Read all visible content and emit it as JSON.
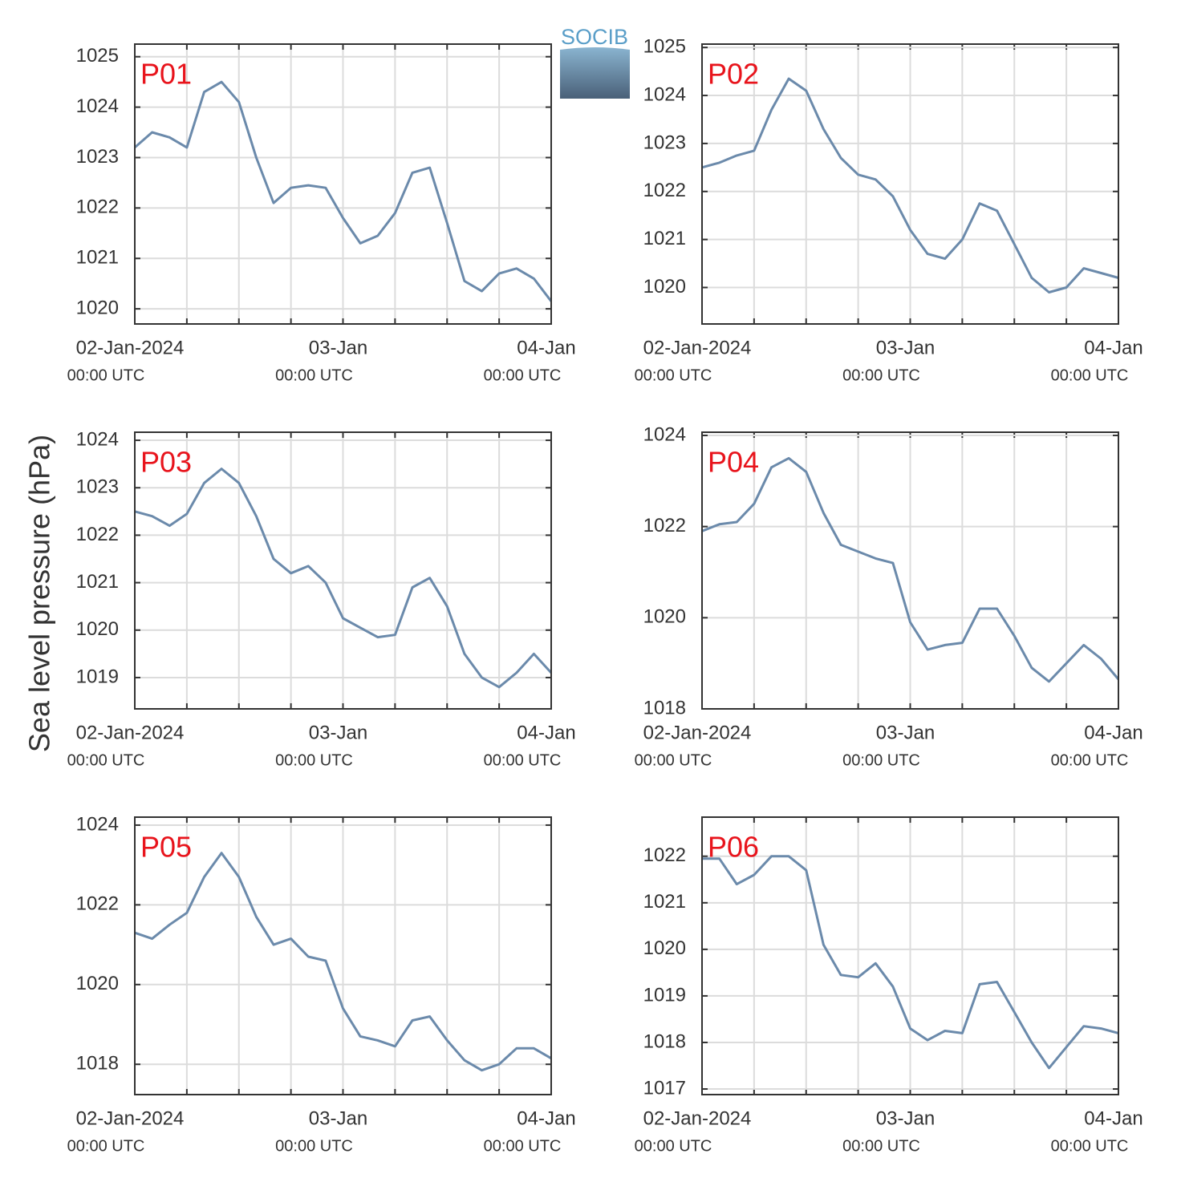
{
  "ylabel": "Sea level pressure (hPa)",
  "logo": "SOCIB",
  "chart_data": [
    {
      "type": "line",
      "title": "P01",
      "color": "#6b8aab",
      "grid": true,
      "x": [
        0,
        2,
        4,
        6,
        8,
        10,
        12,
        14,
        16,
        18,
        20,
        22,
        24,
        26,
        28,
        30,
        32,
        34,
        36,
        38,
        40,
        42,
        44,
        46,
        48
      ],
      "values": [
        1023.2,
        1023.5,
        1023.4,
        1023.2,
        1024.3,
        1024.5,
        1024.1,
        1023.0,
        1022.1,
        1022.4,
        1022.45,
        1022.4,
        1021.8,
        1021.3,
        1021.45,
        1021.9,
        1022.7,
        1022.8,
        1021.7,
        1020.55,
        1020.35,
        1020.7,
        1020.8,
        1020.6,
        1020.15
      ],
      "xlim": [
        0,
        48
      ],
      "ylim": [
        1019.7,
        1025.25
      ],
      "yticks": [
        1020,
        1021,
        1022,
        1023,
        1024,
        1025
      ],
      "xticks": [
        {
          "value": 0,
          "label": "02-Jan-2024",
          "sublabel": "00:00 UTC"
        },
        {
          "value": 24,
          "label": "03-Jan",
          "sublabel": "00:00 UTC"
        },
        {
          "value": 48,
          "label": "04-Jan",
          "sublabel": "00:00 UTC"
        }
      ],
      "xminorticks": [
        6,
        12,
        18,
        30,
        36,
        42
      ]
    },
    {
      "type": "line",
      "title": "P02",
      "color": "#6b8aab",
      "grid": true,
      "x": [
        0,
        2,
        4,
        6,
        8,
        10,
        12,
        14,
        16,
        18,
        20,
        22,
        24,
        26,
        28,
        30,
        32,
        34,
        36,
        38,
        40,
        42,
        44,
        46,
        48
      ],
      "values": [
        1022.5,
        1022.6,
        1022.75,
        1022.85,
        1023.7,
        1024.35,
        1024.1,
        1023.3,
        1022.7,
        1022.35,
        1022.25,
        1021.9,
        1021.2,
        1020.7,
        1020.6,
        1021.0,
        1021.75,
        1021.6,
        1020.9,
        1020.2,
        1019.9,
        1020.0,
        1020.4,
        1020.3,
        1020.2
      ],
      "xlim": [
        0,
        48
      ],
      "ylim": [
        1019.24,
        1025.07
      ],
      "yticks": [
        1020,
        1021,
        1022,
        1023,
        1024,
        1025
      ],
      "xticks": [
        {
          "value": 0,
          "label": "02-Jan-2024",
          "sublabel": "00:00 UTC"
        },
        {
          "value": 24,
          "label": "03-Jan",
          "sublabel": "00:00 UTC"
        },
        {
          "value": 48,
          "label": "04-Jan",
          "sublabel": "00:00 UTC"
        }
      ],
      "xminorticks": [
        6,
        12,
        18,
        30,
        36,
        42
      ]
    },
    {
      "type": "line",
      "title": "P03",
      "color": "#6b8aab",
      "grid": true,
      "x": [
        0,
        2,
        4,
        6,
        8,
        10,
        12,
        14,
        16,
        18,
        20,
        22,
        24,
        26,
        28,
        30,
        32,
        34,
        36,
        38,
        40,
        42,
        44,
        46,
        48
      ],
      "values": [
        1022.5,
        1022.4,
        1022.2,
        1022.45,
        1023.1,
        1023.4,
        1023.1,
        1022.4,
        1021.5,
        1021.2,
        1021.35,
        1021.0,
        1020.25,
        1020.05,
        1019.85,
        1019.9,
        1020.9,
        1021.1,
        1020.5,
        1019.5,
        1019.0,
        1018.8,
        1019.1,
        1019.5,
        1019.1
      ],
      "xlim": [
        0,
        48
      ],
      "ylim": [
        1018.34,
        1024.17
      ],
      "yticks": [
        1019,
        1020,
        1021,
        1022,
        1023,
        1024
      ],
      "xticks": [
        {
          "value": 0,
          "label": "02-Jan-2024",
          "sublabel": "00:00 UTC"
        },
        {
          "value": 24,
          "label": "03-Jan",
          "sublabel": "00:00 UTC"
        },
        {
          "value": 48,
          "label": "04-Jan",
          "sublabel": "00:00 UTC"
        }
      ],
      "xminorticks": [
        6,
        12,
        18,
        30,
        36,
        42
      ]
    },
    {
      "type": "line",
      "title": "P04",
      "color": "#6b8aab",
      "grid": true,
      "x": [
        0,
        2,
        4,
        6,
        8,
        10,
        12,
        14,
        16,
        18,
        20,
        22,
        24,
        26,
        28,
        30,
        32,
        34,
        36,
        38,
        40,
        42,
        44,
        46,
        48
      ],
      "values": [
        1021.9,
        1022.05,
        1022.1,
        1022.5,
        1023.3,
        1023.5,
        1023.2,
        1022.3,
        1021.6,
        1021.45,
        1021.3,
        1021.2,
        1019.9,
        1019.3,
        1019.4,
        1019.45,
        1020.2,
        1020.2,
        1019.6,
        1018.9,
        1018.6,
        1019.0,
        1019.4,
        1019.1,
        1018.65
      ],
      "xlim": [
        0,
        48
      ],
      "ylim": [
        1018,
        1024.07
      ],
      "yticks": [
        1018,
        1020,
        1022,
        1024
      ],
      "xticks": [
        {
          "value": 0,
          "label": "02-Jan-2024",
          "sublabel": "00:00 UTC"
        },
        {
          "value": 24,
          "label": "03-Jan",
          "sublabel": "00:00 UTC"
        },
        {
          "value": 48,
          "label": "04-Jan",
          "sublabel": "00:00 UTC"
        }
      ],
      "xminorticks": [
        6,
        12,
        18,
        30,
        36,
        42
      ]
    },
    {
      "type": "line",
      "title": "P05",
      "color": "#6b8aab",
      "grid": true,
      "x": [
        0,
        2,
        4,
        6,
        8,
        10,
        12,
        14,
        16,
        18,
        20,
        22,
        24,
        26,
        28,
        30,
        32,
        34,
        36,
        38,
        40,
        42,
        44,
        46,
        48
      ],
      "values": [
        1021.3,
        1021.15,
        1021.5,
        1021.8,
        1022.7,
        1023.3,
        1022.7,
        1021.7,
        1021.0,
        1021.15,
        1020.7,
        1020.6,
        1019.4,
        1018.7,
        1018.6,
        1018.45,
        1019.1,
        1019.2,
        1018.6,
        1018.1,
        1017.85,
        1018.0,
        1018.4,
        1018.4,
        1018.15
      ],
      "xlim": [
        0,
        48
      ],
      "ylim": [
        1017.24,
        1024.2
      ],
      "yticks": [
        1018,
        1020,
        1022,
        1024
      ],
      "xticks": [
        {
          "value": 0,
          "label": "02-Jan-2024",
          "sublabel": "00:00 UTC"
        },
        {
          "value": 24,
          "label": "03-Jan",
          "sublabel": "00:00 UTC"
        },
        {
          "value": 48,
          "label": "04-Jan",
          "sublabel": "00:00 UTC"
        }
      ],
      "xminorticks": [
        6,
        12,
        18,
        30,
        36,
        42
      ]
    },
    {
      "type": "line",
      "title": "P06",
      "color": "#6b8aab",
      "grid": true,
      "x": [
        0,
        2,
        4,
        6,
        8,
        10,
        12,
        14,
        16,
        18,
        20,
        22,
        24,
        26,
        28,
        30,
        32,
        34,
        36,
        38,
        40,
        42,
        44,
        46,
        48
      ],
      "values": [
        1021.95,
        1021.95,
        1021.4,
        1021.6,
        1022.0,
        1022.0,
        1021.7,
        1020.1,
        1019.45,
        1019.4,
        1019.7,
        1019.2,
        1018.3,
        1018.05,
        1018.25,
        1018.2,
        1019.25,
        1019.3,
        1018.65,
        1018.0,
        1017.45,
        1017.9,
        1018.35,
        1018.3,
        1018.2
      ],
      "xlim": [
        0,
        48
      ],
      "ylim": [
        1016.88,
        1022.84
      ],
      "yticks": [
        1017,
        1018,
        1019,
        1020,
        1021,
        1022
      ],
      "xticks": [
        {
          "value": 0,
          "label": "02-Jan-2024",
          "sublabel": "00:00 UTC"
        },
        {
          "value": 24,
          "label": "03-Jan",
          "sublabel": "00:00 UTC"
        },
        {
          "value": 48,
          "label": "04-Jan",
          "sublabel": "00:00 UTC"
        }
      ],
      "xminorticks": [
        6,
        12,
        18,
        30,
        36,
        42
      ]
    }
  ]
}
